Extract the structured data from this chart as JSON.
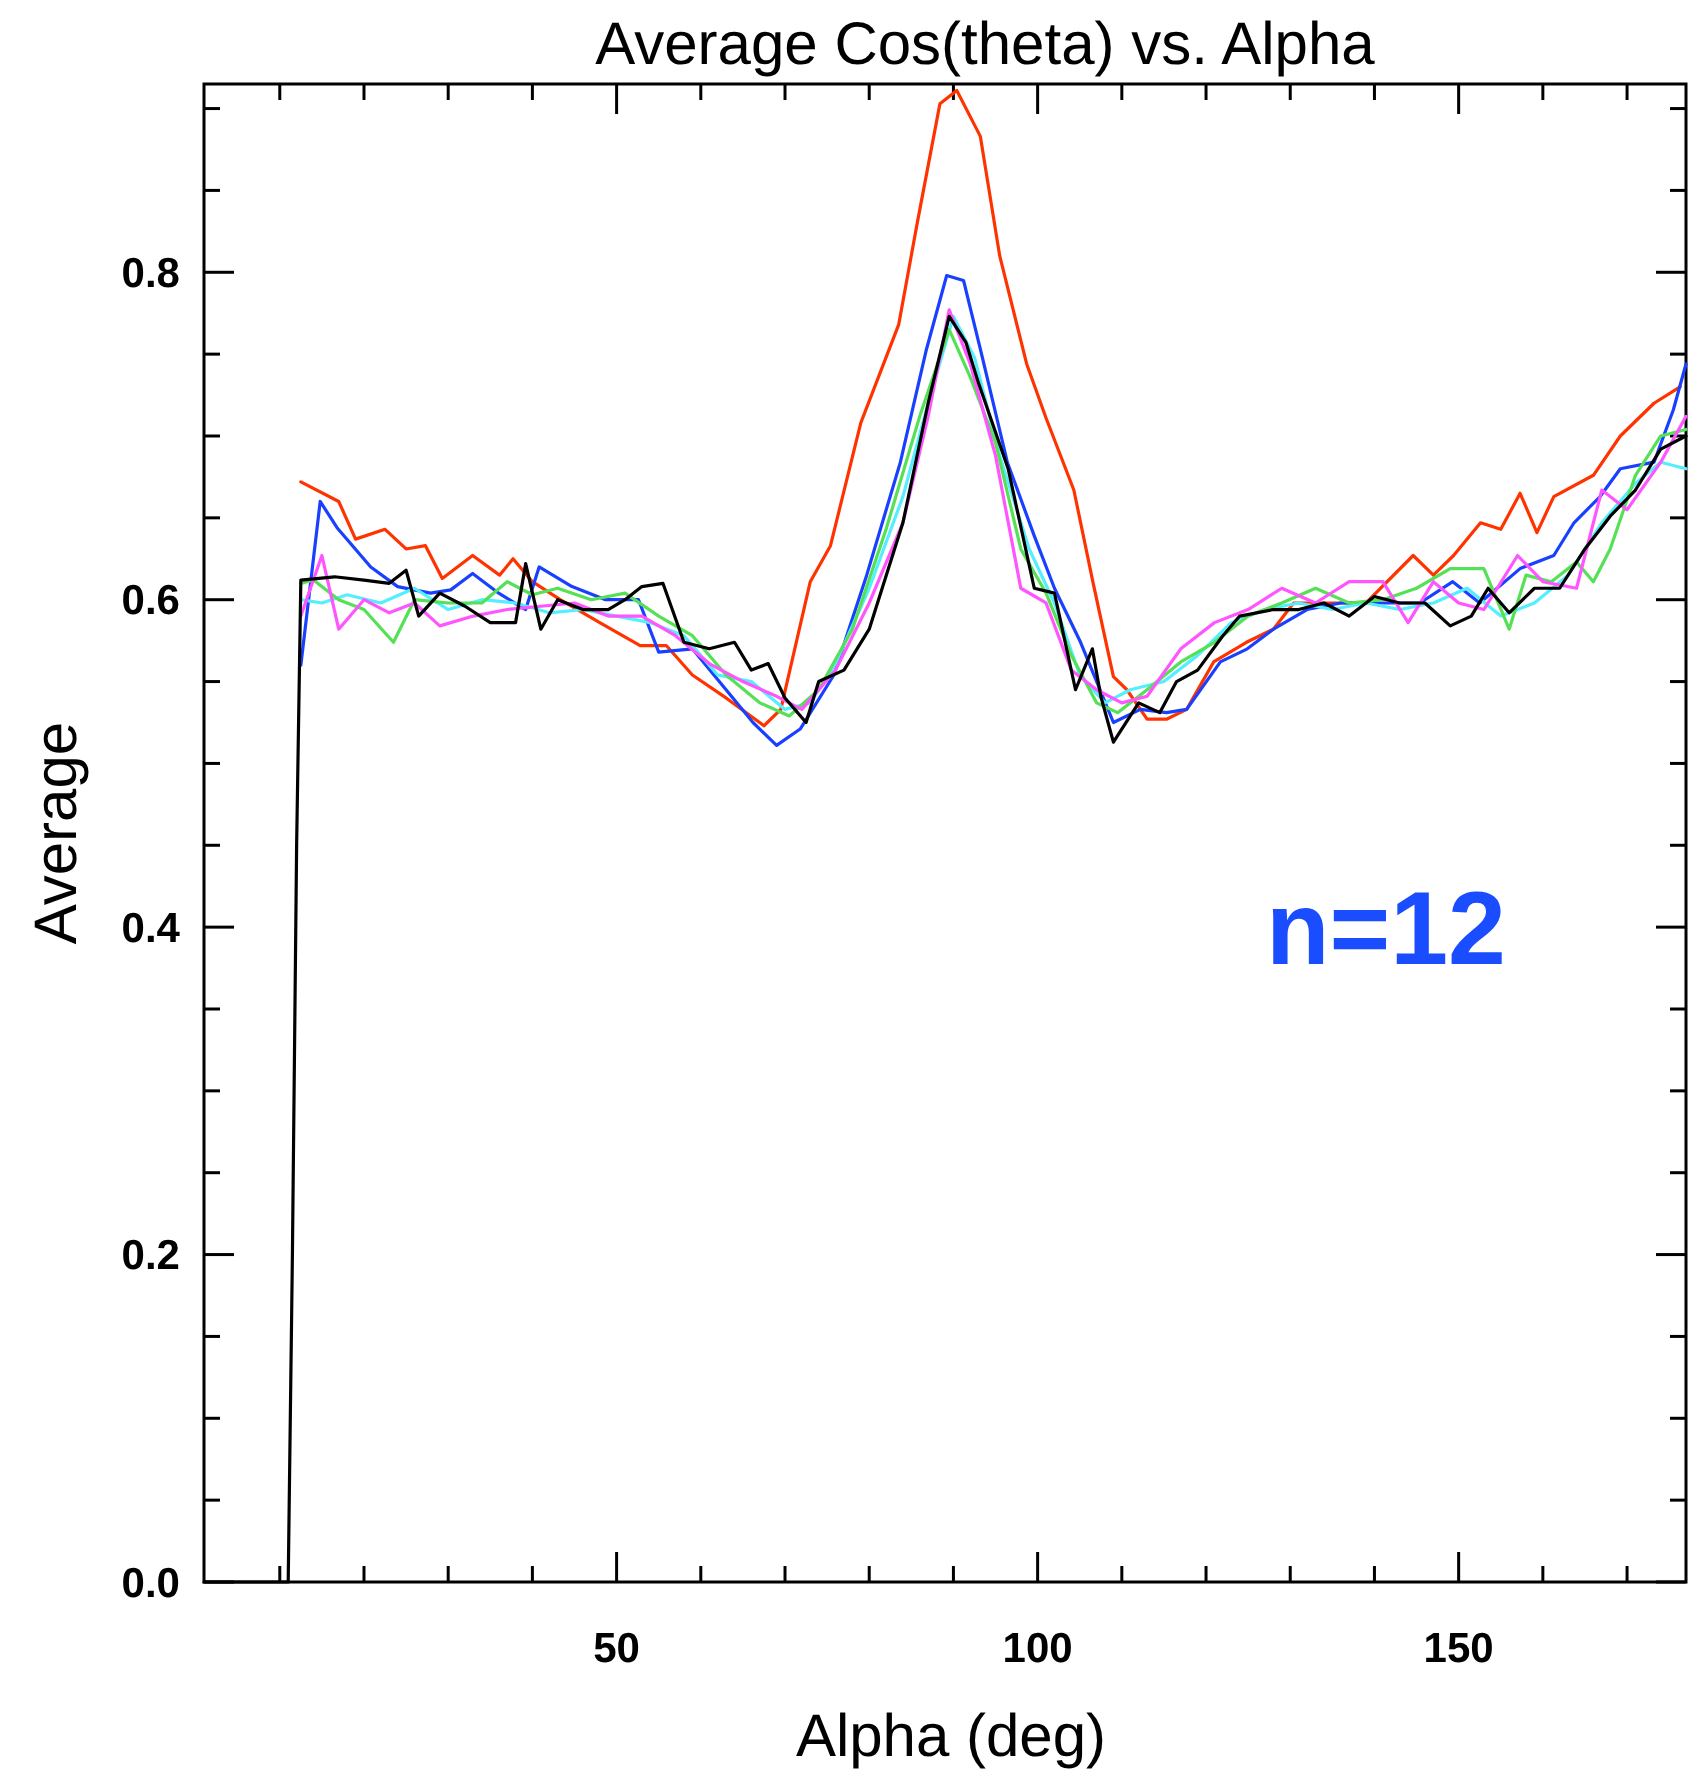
{
  "chart_data": {
    "type": "line",
    "title": "Average Cos(theta) vs. Alpha",
    "xlabel": "Alpha (deg)",
    "ylabel": "Average",
    "annotations": [
      "n=12"
    ],
    "xlim": [
      1,
      177
    ],
    "ylim": [
      0,
      0.915
    ],
    "xticks": [
      {
        "value": 10,
        "label": null
      },
      {
        "value": 20,
        "label": null
      },
      {
        "value": 30,
        "label": null
      },
      {
        "value": 40,
        "label": null
      },
      50,
      {
        "value": 60,
        "label": null
      },
      {
        "value": 70,
        "label": null
      },
      {
        "value": 80,
        "label": null
      },
      {
        "value": 90,
        "label": null
      },
      100,
      {
        "value": 110,
        "label": null
      },
      {
        "value": 120,
        "label": null
      },
      {
        "value": 130,
        "label": null
      },
      {
        "value": 140,
        "label": null
      },
      150,
      {
        "value": 160,
        "label": null
      },
      {
        "value": 170,
        "label": null
      }
    ],
    "yticks": [
      {
        "value": 0,
        "label": "0.0"
      },
      {
        "value": 0.05,
        "label": null
      },
      {
        "value": 0.1,
        "label": null
      },
      {
        "value": 0.15,
        "label": null
      },
      0.2,
      {
        "value": 0.25,
        "label": null
      },
      {
        "value": 0.3,
        "label": null
      },
      {
        "value": 0.35,
        "label": null
      },
      0.4,
      {
        "value": 0.45,
        "label": null
      },
      {
        "value": 0.5,
        "label": null
      },
      {
        "value": 0.55,
        "label": null
      },
      0.6,
      {
        "value": 0.65,
        "label": null
      },
      {
        "value": 0.7,
        "label": null
      },
      {
        "value": 0.75,
        "label": null
      },
      0.8,
      {
        "value": 0.85,
        "label": null
      },
      {
        "value": 0.9,
        "label": null
      }
    ],
    "series": [
      {
        "color": "#ff3300",
        "x": [
          12.5,
          17,
          19,
          22.5,
          25,
          27.3,
          29.3,
          32.9,
          36.1,
          37.7,
          40,
          43.3,
          48,
          52.8,
          55.9,
          59,
          63,
          67.5,
          69.5,
          73,
          75.4,
          79,
          83.5,
          85.7,
          88.4,
          90.4,
          93.2,
          95.5,
          98.7,
          101,
          104.3,
          106.6,
          109,
          110.6,
          113,
          115.3,
          117.7,
          120.9,
          124.8,
          128,
          130.4,
          134.4,
          139,
          144.6,
          147,
          149.4,
          152.6,
          155,
          157.3,
          159.3,
          161.3,
          166,
          169.2,
          173.2,
          176.3
        ],
        "values": [
          0.672,
          0.66,
          0.637,
          0.643,
          0.631,
          0.633,
          0.613,
          0.627,
          0.615,
          0.625,
          0.611,
          0.6,
          0.586,
          0.572,
          0.572,
          0.554,
          0.54,
          0.523,
          0.533,
          0.611,
          0.633,
          0.708,
          0.768,
          0.83,
          0.903,
          0.911,
          0.883,
          0.81,
          0.744,
          0.711,
          0.667,
          0.61,
          0.553,
          0.545,
          0.527,
          0.527,
          0.533,
          0.562,
          0.574,
          0.582,
          0.598,
          0.598,
          0.598,
          0.627,
          0.615,
          0.627,
          0.647,
          0.643,
          0.665,
          0.641,
          0.663,
          0.676,
          0.7,
          0.72,
          0.73
        ]
      },
      {
        "color": "#1a40ff",
        "x": [
          12.5,
          14.8,
          16.8,
          20.8,
          24,
          27.9,
          30.3,
          32.9,
          36,
          39.2,
          40.8,
          44.7,
          48.7,
          52.6,
          55,
          59,
          63,
          66.2,
          69,
          71.8,
          75.8,
          79.7,
          83.7,
          86.8,
          89.2,
          91.2,
          93.2,
          96.4,
          99.6,
          102,
          105.1,
          109,
          112.2,
          115.3,
          117.7,
          121.7,
          124.9,
          128,
          132,
          136,
          139,
          142.2,
          145.4,
          149.3,
          152.5,
          157.3,
          161.3,
          163.7,
          166.8,
          169.2,
          173.2,
          175.5,
          177
        ],
        "values": [
          0.56,
          0.66,
          0.644,
          0.62,
          0.608,
          0.604,
          0.606,
          0.616,
          0.604,
          0.594,
          0.62,
          0.608,
          0.6,
          0.6,
          0.568,
          0.57,
          0.545,
          0.525,
          0.511,
          0.521,
          0.554,
          0.615,
          0.684,
          0.753,
          0.798,
          0.795,
          0.753,
          0.684,
          0.639,
          0.607,
          0.574,
          0.525,
          0.533,
          0.531,
          0.533,
          0.562,
          0.57,
          0.582,
          0.594,
          0.598,
          0.598,
          0.598,
          0.598,
          0.611,
          0.598,
          0.619,
          0.627,
          0.647,
          0.663,
          0.68,
          0.684,
          0.716,
          0.744
        ]
      },
      {
        "color": "#55eeff",
        "x": [
          12.5,
          15,
          18,
          22,
          26,
          30,
          34,
          38,
          42,
          46,
          50,
          54,
          58,
          62,
          66,
          70,
          73,
          76,
          80,
          84,
          87,
          90,
          92.5,
          95.5,
          99,
          102,
          105,
          108,
          111,
          115,
          119,
          123,
          127,
          131,
          135,
          139,
          143,
          147,
          151,
          155,
          159,
          163,
          167,
          171,
          174,
          177
        ],
        "values": [
          0.6,
          0.598,
          0.603,
          0.598,
          0.607,
          0.594,
          0.6,
          0.598,
          0.592,
          0.594,
          0.59,
          0.586,
          0.578,
          0.554,
          0.55,
          0.533,
          0.537,
          0.561,
          0.607,
          0.663,
          0.72,
          0.773,
          0.748,
          0.688,
          0.631,
          0.598,
          0.554,
          0.537,
          0.545,
          0.55,
          0.566,
          0.586,
          0.594,
          0.598,
          0.594,
          0.598,
          0.594,
          0.598,
          0.607,
          0.59,
          0.598,
          0.615,
          0.647,
          0.671,
          0.684,
          0.68
        ]
      },
      {
        "color": "#55e055",
        "x": [
          12.5,
          14,
          17,
          20,
          23.5,
          26,
          30,
          34,
          37,
          40,
          43,
          47,
          51,
          55,
          59,
          63,
          67,
          70.5,
          74,
          78,
          82,
          86,
          89.5,
          92,
          95,
          98,
          101,
          104,
          107,
          109.5,
          113,
          117,
          121,
          125,
          129,
          133,
          137,
          141,
          145,
          149,
          153,
          156,
          158,
          161,
          164,
          166,
          168,
          171,
          174,
          177
        ],
        "values": [
          0.61,
          0.612,
          0.6,
          0.594,
          0.574,
          0.6,
          0.598,
          0.598,
          0.611,
          0.603,
          0.607,
          0.6,
          0.604,
          0.59,
          0.578,
          0.554,
          0.537,
          0.529,
          0.545,
          0.582,
          0.643,
          0.712,
          0.765,
          0.736,
          0.696,
          0.631,
          0.604,
          0.566,
          0.537,
          0.531,
          0.545,
          0.562,
          0.574,
          0.59,
          0.598,
          0.607,
          0.598,
          0.6,
          0.607,
          0.619,
          0.619,
          0.582,
          0.615,
          0.611,
          0.623,
          0.611,
          0.631,
          0.676,
          0.7,
          0.704
        ]
      },
      {
        "color": "#ff55ff",
        "x": [
          12.5,
          15,
          17,
          20,
          23,
          26,
          29,
          33,
          37,
          41,
          45,
          49,
          53,
          57,
          61,
          65,
          69,
          72,
          76,
          80,
          84,
          87,
          89.5,
          92,
          95,
          98,
          101,
          104,
          107,
          110,
          113,
          117,
          121,
          125,
          129,
          133,
          137,
          141,
          144,
          147,
          150,
          153,
          157,
          160,
          164,
          167,
          170,
          174,
          177
        ],
        "values": [
          0.59,
          0.627,
          0.582,
          0.6,
          0.592,
          0.598,
          0.584,
          0.59,
          0.594,
          0.596,
          0.598,
          0.59,
          0.59,
          0.578,
          0.561,
          0.55,
          0.541,
          0.533,
          0.557,
          0.598,
          0.647,
          0.712,
          0.777,
          0.744,
          0.688,
          0.607,
          0.598,
          0.557,
          0.545,
          0.537,
          0.541,
          0.57,
          0.586,
          0.594,
          0.607,
          0.598,
          0.611,
          0.611,
          0.586,
          0.611,
          0.598,
          0.594,
          0.627,
          0.611,
          0.607,
          0.667,
          0.655,
          0.684,
          0.712
        ]
      },
      {
        "color": "#000000",
        "x": [
          1,
          11,
          11.5,
          12,
          12.5,
          16.5,
          20,
          23,
          25,
          26.5,
          29,
          32,
          35,
          38,
          39.2,
          41,
          43,
          46,
          49,
          51,
          53,
          55.5,
          58,
          61,
          64,
          66,
          68,
          70,
          72.5,
          74,
          77,
          80,
          84,
          87,
          89.5,
          91.5,
          93,
          96.5,
          99.6,
          102,
          104.5,
          106.5,
          107.5,
          109,
          112,
          114.5,
          116.5,
          119,
          122,
          124,
          128,
          131,
          134,
          137,
          140,
          143,
          146,
          149,
          151.5,
          153.5,
          156,
          159,
          162,
          165,
          168,
          171,
          174,
          177
        ],
        "values": [
          0,
          0,
          0.2,
          0.45,
          0.612,
          0.614,
          0.612,
          0.61,
          0.618,
          0.59,
          0.604,
          0.596,
          0.586,
          0.586,
          0.622,
          0.582,
          0.6,
          0.594,
          0.594,
          0.6,
          0.608,
          0.61,
          0.574,
          0.57,
          0.574,
          0.557,
          0.561,
          0.54,
          0.525,
          0.55,
          0.557,
          0.582,
          0.647,
          0.72,
          0.773,
          0.757,
          0.732,
          0.68,
          0.607,
          0.604,
          0.545,
          0.57,
          0.541,
          0.513,
          0.537,
          0.531,
          0.55,
          0.557,
          0.578,
          0.59,
          0.594,
          0.594,
          0.598,
          0.59,
          0.602,
          0.598,
          0.598,
          0.584,
          0.59,
          0.607,
          0.592,
          0.607,
          0.607,
          0.631,
          0.651,
          0.667,
          0.692,
          0.7
        ]
      }
    ]
  }
}
